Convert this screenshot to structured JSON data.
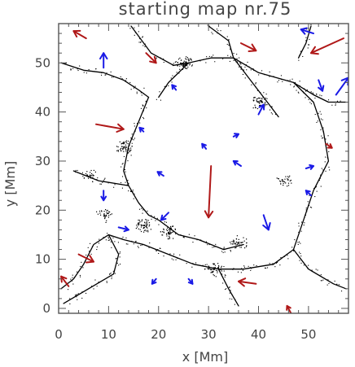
{
  "chart_data": {
    "type": "vector-field-map",
    "title": "starting map nr.75",
    "xlabel": "x [Mm]",
    "ylabel": "y [Mm]",
    "xlim": [
      0,
      58
    ],
    "ylim": [
      -1,
      58
    ],
    "xticks": [
      0,
      10,
      20,
      30,
      40,
      50
    ],
    "yticks": [
      0,
      10,
      20,
      30,
      40,
      50
    ],
    "colors": {
      "red_arrows": "#b01818",
      "blue_arrows": "#1a1ae6",
      "network": "#000000",
      "axes": "#444444"
    },
    "network_lanes": [
      [
        [
          14.5,
          57.5
        ],
        [
          18.5,
          52
        ],
        [
          23,
          49.5
        ],
        [
          26,
          50
        ],
        [
          30.5,
          51
        ],
        [
          35,
          51
        ],
        [
          40,
          48
        ],
        [
          47,
          46
        ],
        [
          51,
          43.5
        ],
        [
          54,
          42
        ],
        [
          57.5,
          42
        ]
      ],
      [
        [
          0.5,
          50
        ],
        [
          5,
          48.5
        ],
        [
          9,
          48
        ],
        [
          13,
          46.5
        ],
        [
          16,
          44.5
        ],
        [
          18,
          43
        ]
      ],
      [
        [
          30,
          57.5
        ],
        [
          34,
          54.5
        ],
        [
          35,
          51
        ]
      ],
      [
        [
          50.5,
          57.5
        ],
        [
          49.5,
          54
        ],
        [
          48,
          51
        ]
      ],
      [
        [
          18,
          43
        ],
        [
          16,
          38
        ],
        [
          14,
          33
        ],
        [
          13,
          28
        ],
        [
          14,
          25
        ],
        [
          16,
          21.5
        ],
        [
          18,
          19
        ],
        [
          20,
          18
        ],
        [
          22,
          16.5
        ],
        [
          24,
          15
        ]
      ],
      [
        [
          47,
          46
        ],
        [
          51,
          42
        ],
        [
          53,
          36
        ],
        [
          54,
          30
        ],
        [
          51,
          24
        ],
        [
          49,
          18
        ],
        [
          47,
          12
        ],
        [
          43,
          9
        ],
        [
          37,
          8
        ],
        [
          32,
          8
        ],
        [
          27,
          9
        ],
        [
          22,
          11
        ],
        [
          17,
          13
        ],
        [
          13,
          14
        ],
        [
          10,
          15
        ]
      ],
      [
        [
          10,
          15
        ],
        [
          7,
          13
        ],
        [
          5,
          9
        ],
        [
          3,
          6
        ],
        [
          0.5,
          4
        ]
      ],
      [
        [
          10,
          15
        ],
        [
          12,
          11
        ],
        [
          11,
          7
        ],
        [
          6,
          4
        ],
        [
          1,
          1
        ]
      ],
      [
        [
          32,
          8
        ],
        [
          34,
          4
        ],
        [
          36,
          0.5
        ]
      ],
      [
        [
          47,
          12
        ],
        [
          50,
          8
        ],
        [
          55,
          5
        ],
        [
          57.5,
          4
        ]
      ],
      [
        [
          14,
          25
        ],
        [
          8,
          26
        ],
        [
          3,
          28
        ]
      ],
      [
        [
          24,
          15
        ],
        [
          28,
          14
        ],
        [
          33,
          12
        ],
        [
          37,
          13
        ]
      ],
      [
        [
          35,
          51
        ],
        [
          38,
          47
        ],
        [
          41,
          43
        ],
        [
          44,
          39
        ]
      ],
      [
        [
          26,
          50
        ],
        [
          22,
          46
        ],
        [
          20,
          43
        ]
      ]
    ],
    "network_clusters": [
      {
        "x": 25,
        "y": 50,
        "density": 1.0
      },
      {
        "x": 40,
        "y": 42,
        "density": 0.8
      },
      {
        "x": 13,
        "y": 33,
        "density": 0.9
      },
      {
        "x": 17,
        "y": 17,
        "density": 1.0
      },
      {
        "x": 22,
        "y": 15.5,
        "density": 0.8
      },
      {
        "x": 31,
        "y": 8,
        "density": 0.9
      },
      {
        "x": 36,
        "y": 13.5,
        "density": 0.7
      },
      {
        "x": 45,
        "y": 26,
        "density": 0.5
      },
      {
        "x": 6,
        "y": 27,
        "density": 0.5
      },
      {
        "x": 9,
        "y": 19,
        "density": 0.6
      }
    ],
    "arrows_red": [
      {
        "x": 5.5,
        "y": 55,
        "dx": -2.5,
        "dy": 1.5
      },
      {
        "x": 17.5,
        "y": 52,
        "dx": 2.0,
        "dy": -2.0
      },
      {
        "x": 36.5,
        "y": 54,
        "dx": 3.0,
        "dy": -1.5
      },
      {
        "x": 57,
        "y": 55,
        "dx": -6.5,
        "dy": -3.0
      },
      {
        "x": 7.5,
        "y": 37.5,
        "dx": 5.5,
        "dy": -1.0
      },
      {
        "x": 30.5,
        "y": 29,
        "dx": -0.5,
        "dy": -10.5
      },
      {
        "x": 53.5,
        "y": 33.5,
        "dx": 1.2,
        "dy": -0.8
      },
      {
        "x": 4,
        "y": 11,
        "dx": 3.0,
        "dy": -1.5
      },
      {
        "x": 2,
        "y": 4.5,
        "dx": -1.5,
        "dy": 2.0
      },
      {
        "x": 39.5,
        "y": 5,
        "dx": -3.5,
        "dy": 0.5
      },
      {
        "x": 46.5,
        "y": -1,
        "dx": -0.8,
        "dy": 1.5
      }
    ],
    "arrows_blue": [
      {
        "x": 9,
        "y": 49,
        "dx": 0,
        "dy": 3.0
      },
      {
        "x": 51,
        "y": 56,
        "dx": -2.5,
        "dy": 0.8
      },
      {
        "x": 52,
        "y": 46.5,
        "dx": 0.8,
        "dy": -2.2
      },
      {
        "x": 55.5,
        "y": 43.5,
        "dx": 2.5,
        "dy": 3.5
      },
      {
        "x": 23.5,
        "y": 44.5,
        "dx": -0.8,
        "dy": 1.0
      },
      {
        "x": 40,
        "y": 39.5,
        "dx": 1.0,
        "dy": 2.0
      },
      {
        "x": 17,
        "y": 36,
        "dx": -0.8,
        "dy": 0.8
      },
      {
        "x": 35,
        "y": 35,
        "dx": 1.0,
        "dy": 0.5
      },
      {
        "x": 29.5,
        "y": 32.5,
        "dx": -0.8,
        "dy": 1.0
      },
      {
        "x": 21,
        "y": 27,
        "dx": -1.2,
        "dy": 0.8
      },
      {
        "x": 36.5,
        "y": 29,
        "dx": -1.5,
        "dy": 1.0
      },
      {
        "x": 49.5,
        "y": 28.5,
        "dx": 1.5,
        "dy": 0.5
      },
      {
        "x": 50.5,
        "y": 23,
        "dx": -1.0,
        "dy": 1.0
      },
      {
        "x": 9,
        "y": 24,
        "dx": 0,
        "dy": -2.0
      },
      {
        "x": 41,
        "y": 19,
        "dx": 1.0,
        "dy": -3.0
      },
      {
        "x": 22,
        "y": 19.5,
        "dx": -1.5,
        "dy": -1.5
      },
      {
        "x": 12,
        "y": 16.5,
        "dx": 2.0,
        "dy": -0.5
      },
      {
        "x": 19.5,
        "y": 6,
        "dx": -0.8,
        "dy": -1.0
      },
      {
        "x": 26,
        "y": 6,
        "dx": 0.8,
        "dy": -1.0
      }
    ]
  }
}
